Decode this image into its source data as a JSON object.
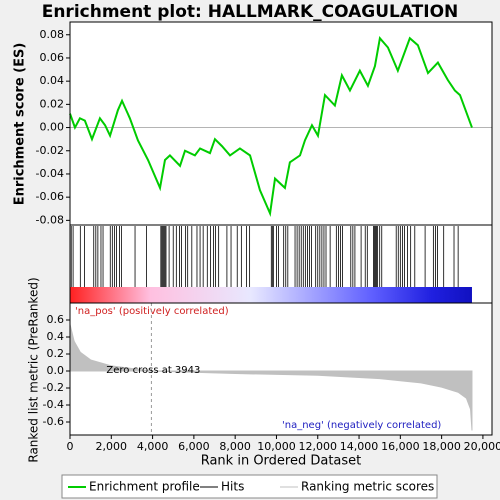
{
  "chart_data": [
    {
      "type": "line",
      "title": "Enrichment plot: HALLMARK_COAGULATION",
      "ylabel": "Enrichment score (ES)",
      "xlim": [
        0,
        20440
      ],
      "ylim": [
        -0.084,
        0.091
      ],
      "yticks": [
        0.08,
        0.06,
        0.04,
        0.02,
        {
          "value": 0,
          "label": "0.00"
        },
        -0.02,
        -0.04,
        -0.06,
        -0.08
      ],
      "series": [
        {
          "name": "Enrichment profile",
          "color": "#00cc00",
          "x": [
            0,
            240,
            480,
            720,
            1065,
            1450,
            1700,
            1940,
            2320,
            2520,
            2900,
            3290,
            3780,
            4360,
            4600,
            4840,
            5330,
            5570,
            6050,
            6300,
            6780,
            7020,
            7360,
            7750,
            8230,
            8720,
            9200,
            9690,
            9930,
            10410,
            10650,
            11140,
            11380,
            11720,
            12010,
            12350,
            12830,
            13170,
            13560,
            14040,
            14430,
            14770,
            15010,
            15400,
            15880,
            16460,
            16850,
            17340,
            17820,
            18300,
            18640,
            18890,
            19470
          ],
          "values": [
            0.012,
            0,
            0.008,
            0.006,
            -0.01,
            0.008,
            0.002,
            -0.007,
            0.015,
            0.023,
            0.008,
            -0.011,
            -0.028,
            -0.052,
            -0.028,
            -0.024,
            -0.033,
            -0.02,
            -0.024,
            -0.018,
            -0.022,
            -0.01,
            -0.016,
            -0.024,
            -0.018,
            -0.024,
            -0.054,
            -0.074,
            -0.044,
            -0.052,
            -0.03,
            -0.024,
            -0.011,
            0.002,
            -0.007,
            0.028,
            0.019,
            0.045,
            0.032,
            0.049,
            0.036,
            0.053,
            0.077,
            0.069,
            0.049,
            0.077,
            0.071,
            0.047,
            0.056,
            0.041,
            0.032,
            0.028,
            0
          ]
        }
      ]
    },
    {
      "type": "rug",
      "xlim": [
        0,
        20440
      ],
      "pos_label": "'na_pos' (positively correlated)",
      "neg_label": "'na_neg' (negatively correlated)",
      "series": [
        {
          "name": "Hits",
          "color": "#000000",
          "x": [
            60,
            150,
            500,
            700,
            1150,
            1250,
            1350,
            1500,
            1600,
            1950,
            2050,
            2150,
            2250,
            2400,
            2500,
            3150,
            3700,
            4400,
            4450,
            4500,
            4550,
            4600,
            4650,
            4800,
            5000,
            5150,
            5300,
            5400,
            5600,
            5700,
            5900,
            6150,
            6300,
            6450,
            6650,
            6800,
            6950,
            7050,
            7200,
            7600,
            7800,
            8100,
            8300,
            8550,
            8700,
            9750,
            9800,
            9850,
            10000,
            10100,
            10350,
            10450,
            10550,
            10900,
            11000,
            11100,
            11200,
            11300,
            11400,
            11500,
            11600,
            11700,
            11900,
            12000,
            12100,
            12200,
            12300,
            12400,
            12600,
            12900,
            13000,
            13100,
            13200,
            13600,
            13700,
            13800,
            14100,
            14300,
            14400,
            14700,
            14750,
            14800,
            14850,
            14900,
            15000,
            15100,
            15800,
            15900,
            16000,
            16100,
            16200,
            16350,
            16500,
            16700,
            17200,
            17600,
            17700,
            17800,
            18100,
            18600,
            18800
          ]
        }
      ]
    },
    {
      "type": "area",
      "ylabel": "Ranked list metric (PreRanked)",
      "xlabel": "Rank in Ordered Dataset",
      "xlim": [
        0,
        20440
      ],
      "ylim": [
        -0.753,
        0.8
      ],
      "xticks": [
        0,
        {
          "value": 2000,
          "label": "2,000"
        },
        {
          "value": 4000,
          "label": "4,000"
        },
        {
          "value": 6000,
          "label": "6,000"
        },
        {
          "value": 8000,
          "label": "8,000"
        },
        {
          "value": 10000,
          "label": "10,000"
        },
        {
          "value": 12000,
          "label": "12,000"
        },
        {
          "value": 14000,
          "label": "14,000"
        },
        {
          "value": 16000,
          "label": "16,000"
        },
        {
          "value": 18000,
          "label": "18,000"
        },
        {
          "value": 20000,
          "label": "20,000"
        }
      ],
      "yticks": [
        0.6,
        0.4,
        0.2,
        {
          "value": 0,
          "label": "0.0"
        },
        -0.2,
        -0.4,
        -0.6
      ],
      "annotation": "Zero cross at 3943",
      "zero_cross": 3943,
      "series": [
        {
          "name": "Ranking metric scores",
          "color": "#c0c0c0",
          "x": [
            0,
            200,
            500,
            1000,
            2000,
            3000,
            3943,
            8000,
            12000,
            15000,
            17000,
            18000,
            18800,
            19200,
            19400,
            19470
          ],
          "values": [
            0.55,
            0.35,
            0.22,
            0.13,
            0.06,
            0.03,
            0,
            -0.03,
            -0.05,
            -0.09,
            -0.14,
            -0.19,
            -0.25,
            -0.32,
            -0.45,
            -0.7
          ]
        }
      ]
    }
  ]
}
